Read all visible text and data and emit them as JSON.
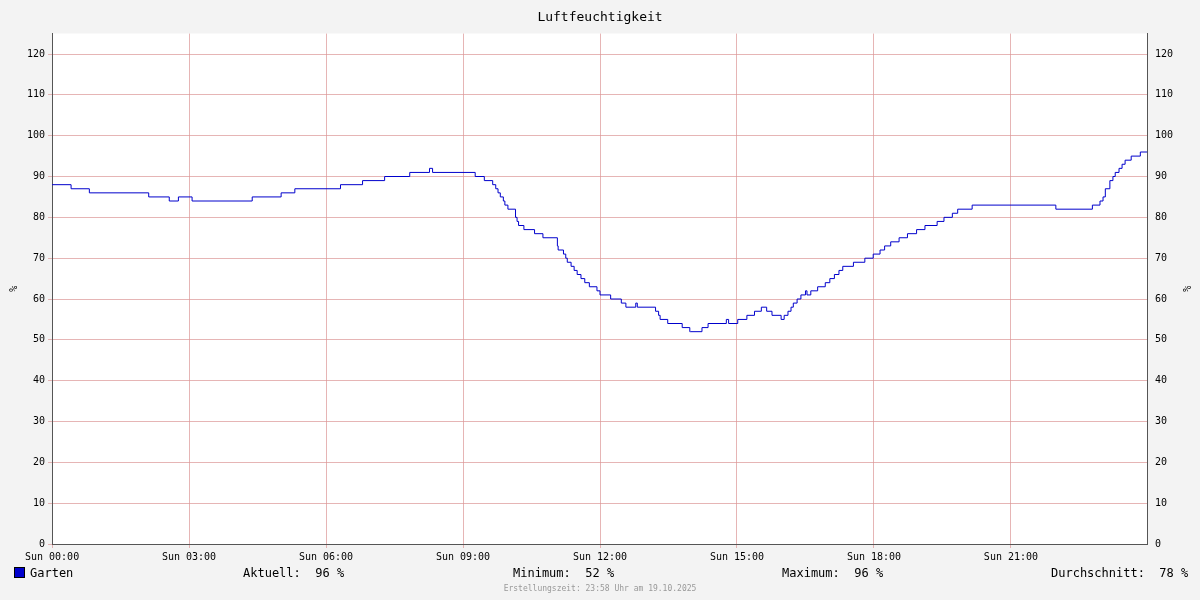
{
  "chart_data": {
    "type": "step",
    "title": "Luftfeuchtigkeit",
    "ylabel": "%",
    "y2label": "%",
    "x": [
      "2025-10-19T00:00",
      "2025-10-19T00:25",
      "2025-10-19T00:49",
      "2025-10-19T02:07",
      "2025-10-19T02:34",
      "2025-10-19T02:46",
      "2025-10-19T03:04",
      "2025-10-19T04:23",
      "2025-10-19T05:01",
      "2025-10-19T05:19",
      "2025-10-19T06:19",
      "2025-10-19T06:48",
      "2025-10-19T07:17",
      "2025-10-19T07:50",
      "2025-10-19T08:16",
      "2025-10-19T08:20",
      "2025-10-19T09:16",
      "2025-10-19T09:28",
      "2025-10-19T09:39",
      "2025-10-19T09:43",
      "2025-10-19T09:46",
      "2025-10-19T09:49",
      "2025-10-19T09:53",
      "2025-10-19T09:55",
      "2025-10-19T09:59",
      "2025-10-19T10:09",
      "2025-10-19T10:11",
      "2025-10-19T10:13",
      "2025-10-19T10:20",
      "2025-10-19T10:34",
      "2025-10-19T10:45",
      "2025-10-19T11:04",
      "2025-10-19T11:05",
      "2025-10-19T11:12",
      "2025-10-19T11:15",
      "2025-10-19T11:17",
      "2025-10-19T11:22",
      "2025-10-19T11:26",
      "2025-10-19T11:30",
      "2025-10-19T11:35",
      "2025-10-19T11:40",
      "2025-10-19T11:46",
      "2025-10-19T11:56",
      "2025-10-19T12:00",
      "2025-10-19T12:14",
      "2025-10-19T12:28",
      "2025-10-19T12:34",
      "2025-10-19T12:47",
      "2025-10-19T12:49",
      "2025-10-19T13:13",
      "2025-10-19T13:17",
      "2025-10-19T13:19",
      "2025-10-19T13:29",
      "2025-10-19T13:48",
      "2025-10-19T13:58",
      "2025-10-19T13:59",
      "2025-10-19T14:14",
      "2025-10-19T14:22",
      "2025-10-19T14:46",
      "2025-10-19T14:49",
      "2025-10-19T15:01",
      "2025-10-19T15:13",
      "2025-10-19T15:23",
      "2025-10-19T15:32",
      "2025-10-19T15:39",
      "2025-10-19T15:46",
      "2025-10-19T15:58",
      "2025-10-19T16:02",
      "2025-10-19T16:07",
      "2025-10-19T16:11",
      "2025-10-19T16:14",
      "2025-10-19T16:19",
      "2025-10-19T16:24",
      "2025-10-19T16:30",
      "2025-10-19T16:32",
      "2025-10-19T16:37",
      "2025-10-19T16:46",
      "2025-10-19T16:56",
      "2025-10-19T17:02",
      "2025-10-19T17:08",
      "2025-10-19T17:14",
      "2025-10-19T17:19",
      "2025-10-19T17:33",
      "2025-10-19T17:48",
      "2025-10-19T17:59",
      "2025-10-19T18:08",
      "2025-10-19T18:14",
      "2025-10-19T18:22",
      "2025-10-19T18:33",
      "2025-10-19T18:44",
      "2025-10-19T18:56",
      "2025-10-19T19:07",
      "2025-10-19T19:23",
      "2025-10-19T19:32",
      "2025-10-19T19:43",
      "2025-10-19T19:50",
      "2025-10-19T20:09",
      "2025-10-19T21:59",
      "2025-10-19T22:47",
      "2025-10-19T22:57",
      "2025-10-19T23:01",
      "2025-10-19T23:04",
      "2025-10-19T23:10",
      "2025-10-19T23:14",
      "2025-10-19T23:17",
      "2025-10-19T23:22",
      "2025-10-19T23:26",
      "2025-10-19T23:30",
      "2025-10-19T23:38",
      "2025-10-19T23:50",
      "2025-10-19T23:59"
    ],
    "series": [
      {
        "name": "Garten",
        "color": "#0000cc",
        "values": [
          88,
          87,
          86,
          85,
          84,
          85,
          84,
          85,
          86,
          87,
          88,
          89,
          90,
          91,
          92,
          91,
          90,
          89,
          88,
          87,
          86,
          85,
          84,
          83,
          82,
          80,
          79,
          78,
          77,
          76,
          75,
          73,
          72,
          71,
          70,
          69,
          68,
          67,
          66,
          65,
          64,
          63,
          62,
          61,
          60,
          59,
          58,
          59,
          58,
          57,
          56,
          55,
          54,
          53,
          52,
          52,
          53,
          54,
          55,
          54,
          55,
          56,
          57,
          58,
          57,
          56,
          55,
          56,
          57,
          58,
          59,
          60,
          61,
          62,
          61,
          62,
          63,
          64,
          65,
          66,
          67,
          68,
          69,
          70,
          71,
          72,
          73,
          74,
          75,
          76,
          77,
          78,
          79,
          80,
          81,
          82,
          83,
          82,
          83,
          84,
          85,
          87,
          89,
          90,
          91,
          92,
          93,
          94,
          95,
          96,
          96
        ]
      }
    ],
    "xlim": [
      "2025-10-19T00:00",
      "2025-10-20T00:00"
    ],
    "xticks": [
      {
        "value": "2025-10-19T00:00",
        "label": "Sun 00:00"
      },
      {
        "value": "2025-10-19T03:00",
        "label": "Sun 03:00"
      },
      {
        "value": "2025-10-19T06:00",
        "label": "Sun 06:00"
      },
      {
        "value": "2025-10-19T09:00",
        "label": "Sun 09:00"
      },
      {
        "value": "2025-10-19T12:00",
        "label": "Sun 12:00"
      },
      {
        "value": "2025-10-19T15:00",
        "label": "Sun 15:00"
      },
      {
        "value": "2025-10-19T18:00",
        "label": "Sun 18:00"
      },
      {
        "value": "2025-10-19T21:00",
        "label": "Sun 21:00"
      }
    ],
    "ylim": [
      0,
      125
    ],
    "yticks": [
      0,
      10,
      20,
      30,
      40,
      50,
      60,
      70,
      80,
      90,
      100,
      110,
      120
    ],
    "y2lim": [
      0,
      125
    ],
    "y2ticks": [
      0,
      10,
      20,
      30,
      40,
      50,
      60,
      70,
      80,
      90,
      100,
      110,
      120
    ],
    "grid": true,
    "legend": "bottom left",
    "marker": "none",
    "line_style": "solid",
    "annotations": [
      "Aktuell:  96 %",
      "Minimum:  52 %",
      "Maximum:  96 %",
      "Durchschnitt:  78 %",
      "Erstellungszeit: 23:58 Uhr am 19.10.2025"
    ]
  }
}
